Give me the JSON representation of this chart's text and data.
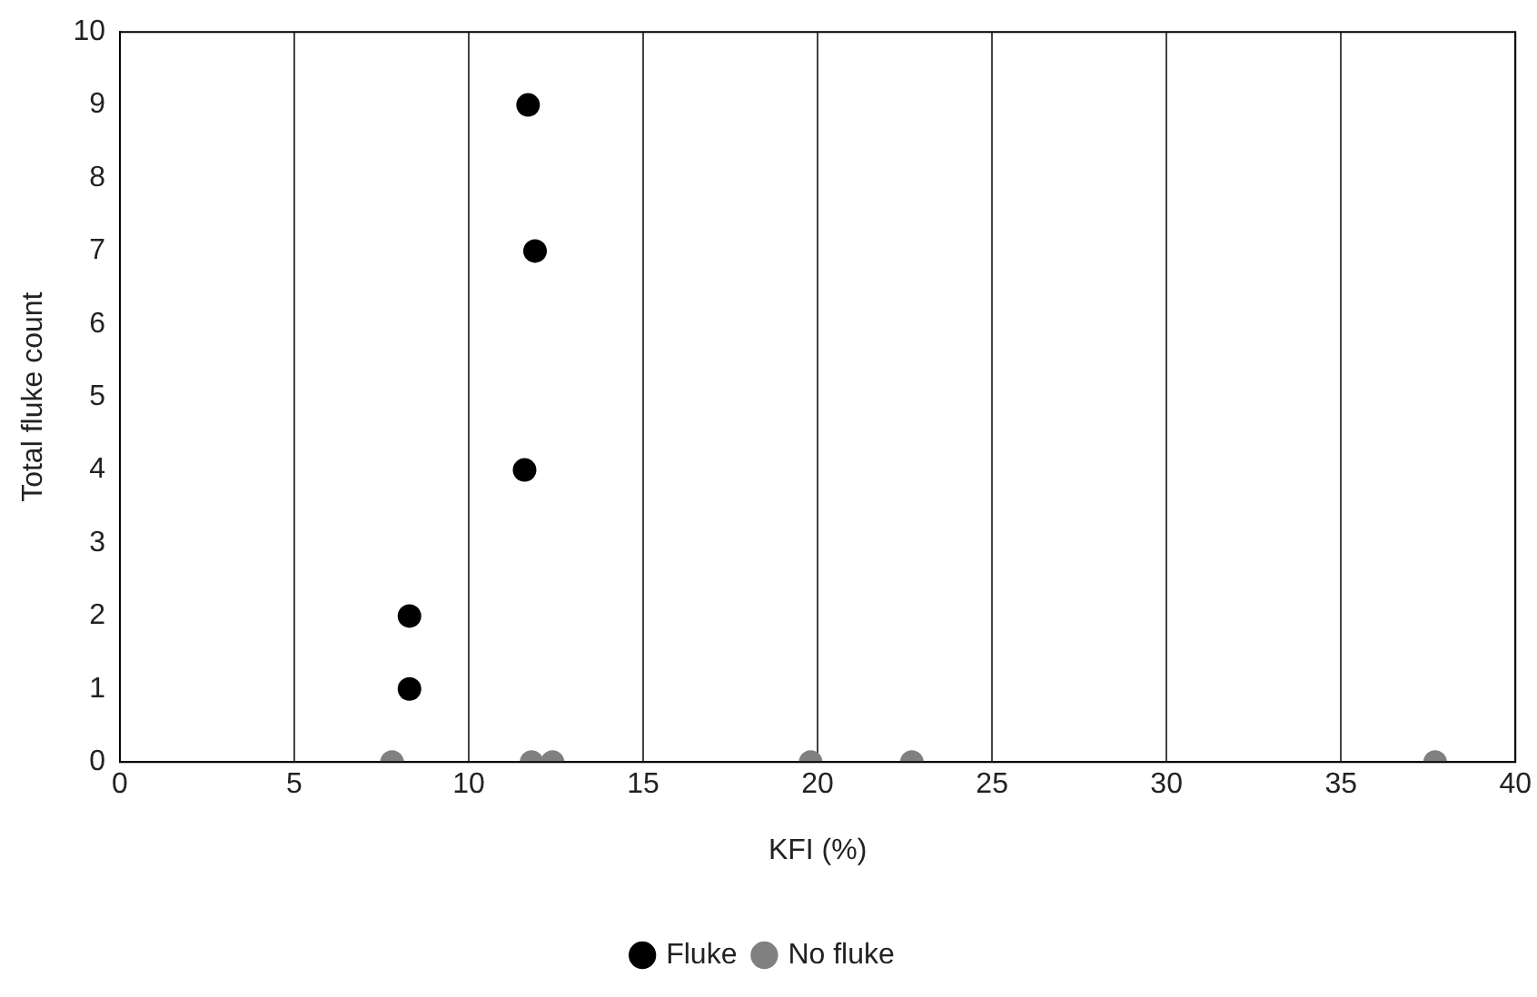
{
  "chart_data": {
    "type": "scatter",
    "xlabel": "KFI (%)",
    "ylabel": "Total fluke count",
    "xlim": [
      0,
      40
    ],
    "xticks": [
      0,
      5,
      10,
      15,
      20,
      25,
      30,
      35,
      40
    ],
    "ylim": [
      0,
      10
    ],
    "yticks": [
      0,
      1,
      2,
      3,
      4,
      5,
      6,
      7,
      8,
      9,
      10
    ],
    "grid": "x",
    "legend": "bottom",
    "marker": "circle",
    "series": [
      {
        "name": "Fluke",
        "color": "#000000",
        "x": [
          11.7,
          11.9,
          11.6,
          8.3,
          8.3
        ],
        "values": [
          9,
          7,
          4,
          2,
          1
        ]
      },
      {
        "name": "No fluke",
        "color": "#808080",
        "x": [
          7.8,
          11.8,
          12.4,
          19.8,
          22.7,
          37.7
        ],
        "values": [
          0,
          0,
          0,
          0,
          0,
          0
        ]
      }
    ]
  }
}
